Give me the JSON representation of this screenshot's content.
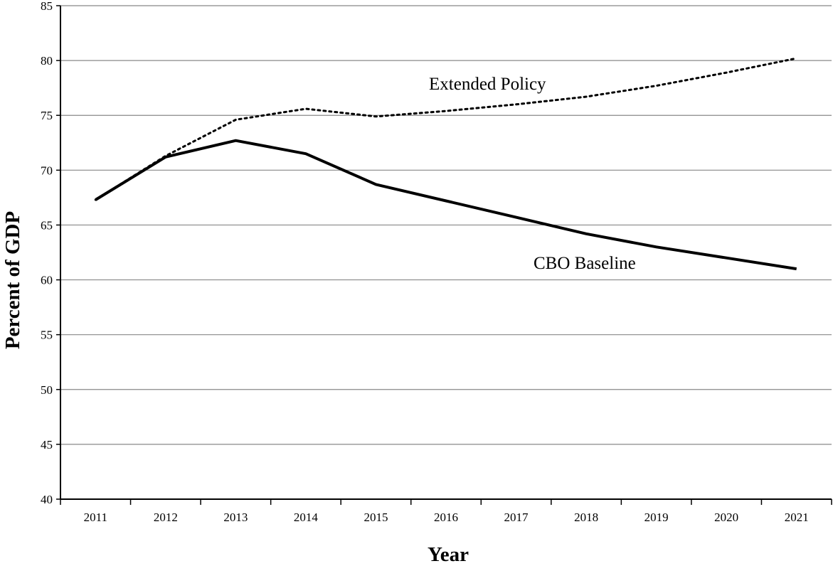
{
  "chart_data": {
    "type": "line",
    "title": "",
    "xlabel": "Year",
    "ylabel": "Percent of GDP",
    "x": [
      "2011",
      "2012",
      "2013",
      "2014",
      "2015",
      "2016",
      "2017",
      "2018",
      "2019",
      "2020",
      "2021"
    ],
    "ylim": [
      40,
      85
    ],
    "yticks": [
      "40",
      "45",
      "50",
      "55",
      "60",
      "65",
      "70",
      "75",
      "80",
      "85"
    ],
    "grid": "horizontal",
    "series": [
      {
        "name": "CBO Baseline",
        "style": "solid",
        "color": "#000000",
        "values": [
          67.3,
          71.2,
          72.7,
          71.5,
          68.7,
          67.2,
          65.7,
          64.2,
          63.0,
          62.0,
          61.0
        ]
      },
      {
        "name": "Extended Policy",
        "style": "dotted",
        "color": "#000000",
        "values": [
          67.3,
          71.3,
          74.6,
          75.6,
          74.9,
          75.4,
          76.0,
          76.7,
          77.7,
          78.9,
          80.2
        ]
      }
    ]
  }
}
